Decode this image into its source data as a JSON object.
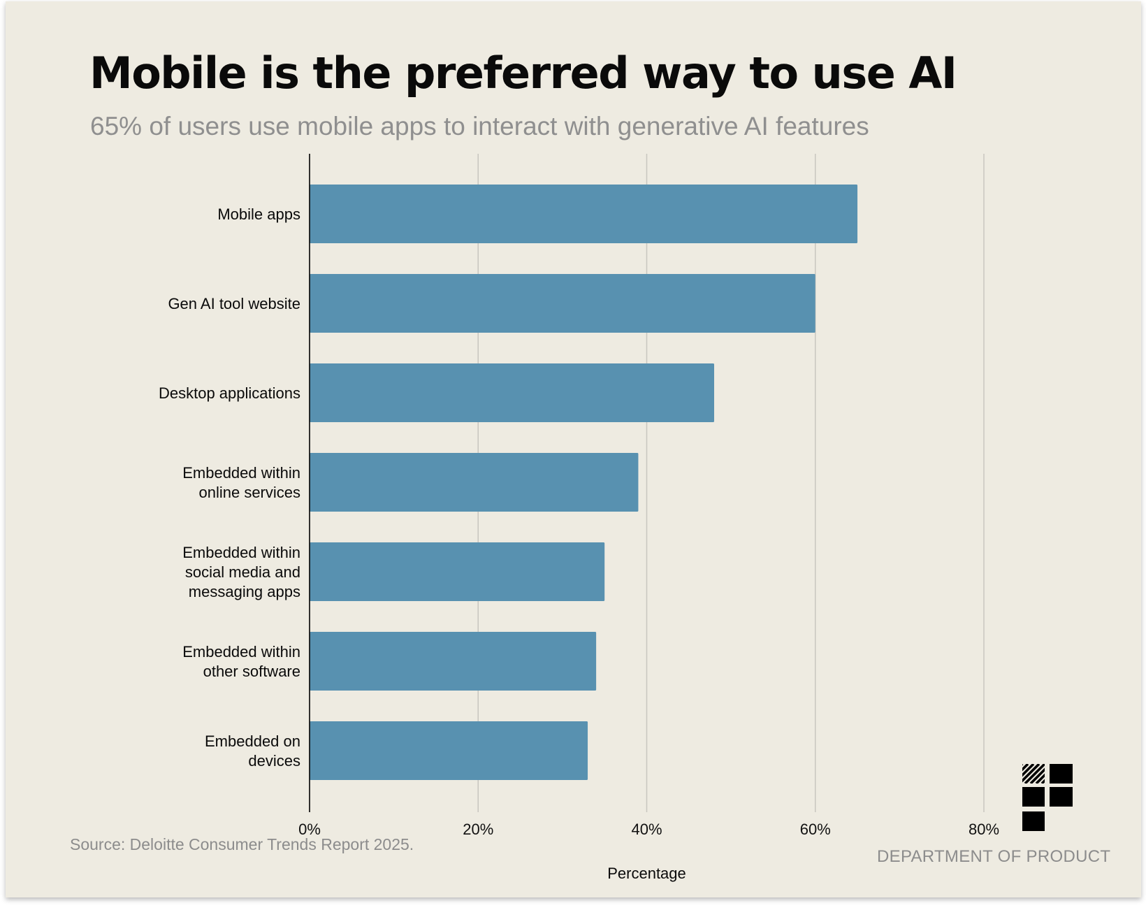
{
  "header": {
    "title": "Mobile is the preferred way to use AI",
    "subtitle": "65% of users use mobile apps to interact with generative AI features"
  },
  "footer": {
    "source": "Source: Deloitte Consumer Trends Report 2025.",
    "brand": "DEPARTMENT OF PRODUCT"
  },
  "colors": {
    "background": "#eeebe1",
    "bar": "#5891b0",
    "grid": "#c8c6bf",
    "axis": "#000000"
  },
  "chart_data": {
    "type": "bar",
    "orientation": "horizontal",
    "title": "Mobile is the preferred way to use AI",
    "subtitle": "65% of users use mobile apps to interact with generative AI features",
    "xlabel": "Percentage",
    "ylabel": "",
    "xlim": [
      0,
      80
    ],
    "xticks": [
      0,
      20,
      40,
      60,
      80
    ],
    "xtick_labels": [
      "0%",
      "20%",
      "40%",
      "60%",
      "80%"
    ],
    "grid": "vertical",
    "categories": [
      "Mobile apps",
      "Gen AI tool website",
      "Desktop applications",
      "Embedded within online services",
      "Embedded within social media and messaging apps",
      "Embedded within other software",
      "Embedded on devices"
    ],
    "category_label_lines": [
      [
        "Mobile apps"
      ],
      [
        "Gen AI tool website"
      ],
      [
        "Desktop applications"
      ],
      [
        "Embedded within",
        "online services"
      ],
      [
        "Embedded within",
        "social media and",
        "messaging apps"
      ],
      [
        "Embedded within",
        "other software"
      ],
      [
        "Embedded on",
        "devices"
      ]
    ],
    "values": [
      65,
      60,
      48,
      39,
      35,
      34,
      33
    ]
  }
}
